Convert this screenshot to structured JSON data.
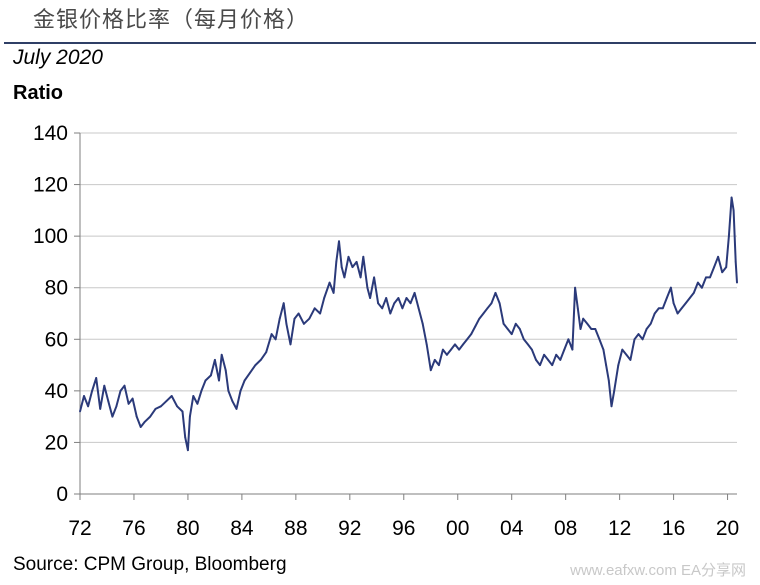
{
  "header": {
    "title": "金银价格比率（每月价格）",
    "date": "July 2020"
  },
  "footer": {
    "source": "Source: CPM Group, Bloomberg",
    "watermark": "www.eafxw.com  EA分享网"
  },
  "chart_data": {
    "type": "line",
    "title": "金银价格比率（每月价格）",
    "subtitle": "July 2020",
    "xlabel": "",
    "ylabel": "Ratio",
    "xlim": [
      1972,
      2020.7
    ],
    "ylim": [
      0,
      140
    ],
    "grid": true,
    "y_ticks": [
      0,
      20,
      40,
      60,
      80,
      100,
      120,
      140
    ],
    "x_tick_values": [
      1972,
      1976,
      1980,
      1984,
      1988,
      1992,
      1996,
      2000,
      2004,
      2008,
      2012,
      2016,
      2020
    ],
    "x_tick_labels": [
      "72",
      "76",
      "80",
      "84",
      "88",
      "92",
      "96",
      "00",
      "04",
      "08",
      "12",
      "16",
      "20"
    ],
    "colors": {
      "line": "#2b3a7a",
      "grid": "#c8c8c8",
      "axis": "#7f7f7f"
    },
    "series": [
      {
        "name": "",
        "x": [
          1972.0,
          1972.3,
          1972.6,
          1972.9,
          1973.2,
          1973.5,
          1973.8,
          1974.1,
          1974.4,
          1974.7,
          1975.0,
          1975.3,
          1975.6,
          1975.9,
          1976.2,
          1976.5,
          1976.8,
          1977.2,
          1977.6,
          1978.0,
          1978.4,
          1978.8,
          1979.2,
          1979.6,
          1979.8,
          1980.0,
          1980.15,
          1980.4,
          1980.7,
          1981.0,
          1981.3,
          1981.7,
          1982.0,
          1982.3,
          1982.5,
          1982.8,
          1983.0,
          1983.3,
          1983.6,
          1983.9,
          1984.2,
          1984.6,
          1985.0,
          1985.4,
          1985.8,
          1986.2,
          1986.5,
          1986.8,
          1987.1,
          1987.3,
          1987.6,
          1987.9,
          1988.2,
          1988.6,
          1989.0,
          1989.4,
          1989.8,
          1990.1,
          1990.5,
          1990.8,
          1991.0,
          1991.2,
          1991.4,
          1991.6,
          1991.9,
          1992.2,
          1992.5,
          1992.8,
          1993.0,
          1993.3,
          1993.5,
          1993.8,
          1994.1,
          1994.4,
          1994.7,
          1995.0,
          1995.3,
          1995.6,
          1995.9,
          1996.2,
          1996.5,
          1996.8,
          1997.1,
          1997.4,
          1997.7,
          1998.0,
          1998.3,
          1998.6,
          1998.9,
          1999.2,
          1999.5,
          1999.8,
          2000.1,
          2000.4,
          2000.7,
          2001.0,
          2001.3,
          2001.6,
          2001.9,
          2002.2,
          2002.5,
          2002.8,
          2003.1,
          2003.4,
          2003.7,
          2004.0,
          2004.3,
          2004.6,
          2004.9,
          2005.2,
          2005.5,
          2005.8,
          2006.1,
          2006.4,
          2006.7,
          2007.0,
          2007.3,
          2007.6,
          2007.9,
          2008.2,
          2008.5,
          2008.7,
          2008.9,
          2009.1,
          2009.3,
          2009.6,
          2009.9,
          2010.2,
          2010.5,
          2010.8,
          2011.0,
          2011.2,
          2011.4,
          2011.6,
          2011.9,
          2012.2,
          2012.5,
          2012.8,
          2013.1,
          2013.4,
          2013.7,
          2014.0,
          2014.3,
          2014.6,
          2014.9,
          2015.2,
          2015.5,
          2015.8,
          2016.0,
          2016.3,
          2016.6,
          2016.9,
          2017.2,
          2017.5,
          2017.8,
          2018.1,
          2018.4,
          2018.7,
          2019.0,
          2019.3,
          2019.6,
          2019.9,
          2020.1,
          2020.3,
          2020.45,
          2020.6,
          2020.7
        ],
        "y": [
          32,
          38,
          34,
          40,
          45,
          33,
          42,
          36,
          30,
          34,
          40,
          42,
          35,
          37,
          30,
          26,
          28,
          30,
          33,
          34,
          36,
          38,
          34,
          32,
          22,
          17,
          30,
          38,
          35,
          40,
          44,
          46,
          52,
          44,
          54,
          48,
          40,
          36,
          33,
          40,
          44,
          47,
          50,
          52,
          55,
          62,
          60,
          68,
          74,
          66,
          58,
          68,
          70,
          66,
          68,
          72,
          70,
          76,
          82,
          78,
          90,
          98,
          88,
          84,
          92,
          88,
          90,
          84,
          92,
          80,
          76,
          84,
          74,
          72,
          76,
          70,
          74,
          76,
          72,
          76,
          74,
          78,
          72,
          66,
          58,
          48,
          52,
          50,
          56,
          54,
          56,
          58,
          56,
          58,
          60,
          62,
          65,
          68,
          70,
          72,
          74,
          78,
          74,
          66,
          64,
          62,
          66,
          64,
          60,
          58,
          56,
          52,
          50,
          54,
          52,
          50,
          54,
          52,
          56,
          60,
          56,
          80,
          72,
          64,
          68,
          66,
          64,
          64,
          60,
          56,
          50,
          44,
          34,
          40,
          50,
          56,
          54,
          52,
          60,
          62,
          60,
          64,
          66,
          70,
          72,
          72,
          76,
          80,
          74,
          70,
          72,
          74,
          76,
          78,
          82,
          80,
          84,
          84,
          88,
          92,
          86,
          88,
          100,
          115,
          110,
          90,
          82
        ]
      }
    ]
  }
}
